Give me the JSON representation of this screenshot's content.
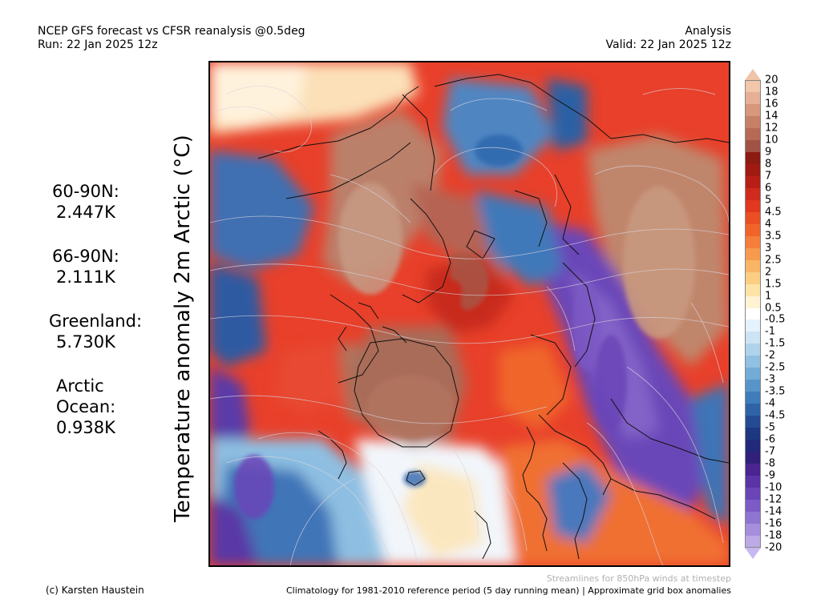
{
  "header": {
    "title_line1": "NCEP GFS forecast vs CFSR reanalysis @0.5deg",
    "title_line2": "Run: 22 Jan 2025 12z",
    "right_line1": "Analysis",
    "right_line2": "Valid: 22 Jan 2025 12z"
  },
  "map": {
    "variable_label": "Temperature anomaly 2m Arctic (°C)",
    "projection_view": "north polar stereographic",
    "streamlines": true
  },
  "stats": [
    {
      "label": "60-90N:",
      "value": "2.447K"
    },
    {
      "label": "66-90N:",
      "value": "2.111K"
    },
    {
      "label": "Greenland:",
      "value": "5.730K"
    },
    {
      "label": "Arctic",
      "label2": "Ocean:",
      "value": "0.938K"
    }
  ],
  "colorbar": {
    "ticks": [
      "20",
      "18",
      "16",
      "14",
      "12",
      "10",
      "9",
      "8",
      "7",
      "6",
      "5",
      "4.5",
      "4",
      "3.5",
      "3",
      "2.5",
      "2",
      "1.5",
      "1",
      "0.5",
      "-0.5",
      "-1",
      "-1.5",
      "-2",
      "-2.5",
      "-3",
      "-3.5",
      "-4",
      "-4.5",
      "-5",
      "-6",
      "-7",
      "-8",
      "-9",
      "-10",
      "-12",
      "-14",
      "-16",
      "-18",
      "-20"
    ],
    "colors": [
      "#f2c7aa",
      "#e6b096",
      "#d6977a",
      "#c68066",
      "#b66a56",
      "#a05244",
      "#8c1c12",
      "#a01a12",
      "#b81e16",
      "#cf2a1e",
      "#e0391f",
      "#ea4e24",
      "#f0642c",
      "#f47e3a",
      "#f69b4e",
      "#f8b565",
      "#fbce82",
      "#fde3a6",
      "#fff3d4",
      "#ffffff",
      "#e6f2fb",
      "#cce4f4",
      "#b0d3ec",
      "#90c0e2",
      "#72acd6",
      "#5795c9",
      "#3f7cba",
      "#2e63a8",
      "#234b94",
      "#1d3880",
      "#22287a",
      "#30207a",
      "#4a2592",
      "#5b33a6",
      "#6a45b8",
      "#7b5cc6",
      "#8f75d2",
      "#a58fdc",
      "#bcaae6"
    ]
  },
  "footer": {
    "credit": "(c) Karsten Haustein",
    "note_streamlines": "Streamlines for 850hPa winds at timestep",
    "note_climatology": "Climatology for 1981-2010 reference period (5 day running mean) | Approximate grid box anomalies"
  }
}
